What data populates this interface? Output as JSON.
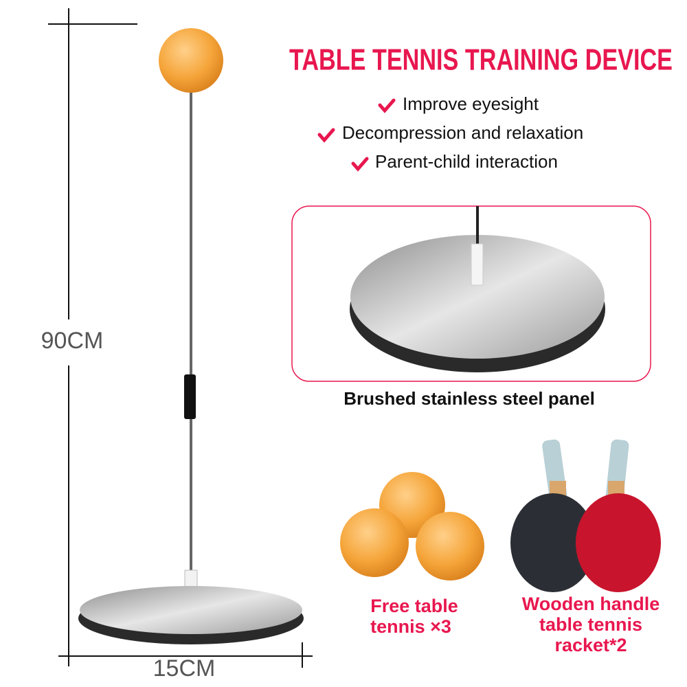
{
  "header": {
    "title": "TABLE TENNIS TRAINING DEVICE"
  },
  "features": [
    "Improve eyesight",
    "Decompression and relaxation",
    "Parent-child interaction"
  ],
  "dimensions": {
    "height": "90CM",
    "width": "15CM"
  },
  "panel": {
    "caption": "Brushed stainless steel panel"
  },
  "accessories": [
    {
      "lines": [
        "Free table",
        "tennis ×3"
      ]
    },
    {
      "lines": [
        "Wooden handle",
        "table tennis",
        "racket*2"
      ]
    }
  ]
}
